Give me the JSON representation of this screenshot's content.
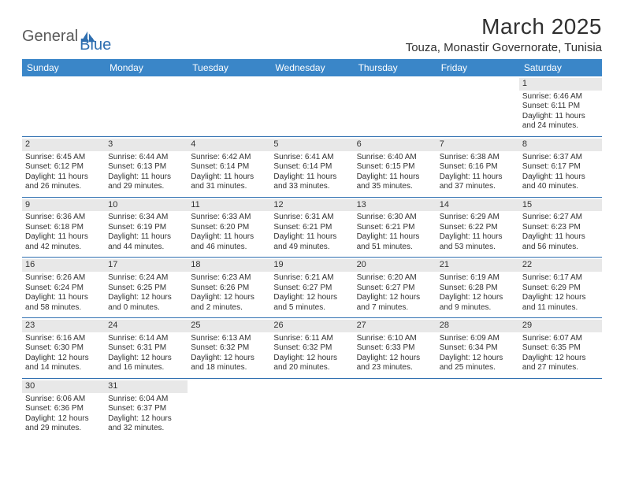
{
  "brand": {
    "part1": "General",
    "part2": "Blue"
  },
  "title": "March 2025",
  "location": "Touza, Monastir Governorate, Tunisia",
  "colors": {
    "header_bg": "#3a86c8",
    "border": "#2f6fb0",
    "daynum_bg": "#e8e8e8",
    "text": "#333333",
    "logo_gray": "#5a5a5a",
    "logo_blue": "#2f6fb0"
  },
  "daynames": [
    "Sunday",
    "Monday",
    "Tuesday",
    "Wednesday",
    "Thursday",
    "Friday",
    "Saturday"
  ],
  "weeks": [
    [
      null,
      null,
      null,
      null,
      null,
      null,
      {
        "n": "1",
        "sr": "6:46 AM",
        "ss": "6:11 PM",
        "dl": "11 hours and 24 minutes."
      }
    ],
    [
      {
        "n": "2",
        "sr": "6:45 AM",
        "ss": "6:12 PM",
        "dl": "11 hours and 26 minutes."
      },
      {
        "n": "3",
        "sr": "6:44 AM",
        "ss": "6:13 PM",
        "dl": "11 hours and 29 minutes."
      },
      {
        "n": "4",
        "sr": "6:42 AM",
        "ss": "6:14 PM",
        "dl": "11 hours and 31 minutes."
      },
      {
        "n": "5",
        "sr": "6:41 AM",
        "ss": "6:14 PM",
        "dl": "11 hours and 33 minutes."
      },
      {
        "n": "6",
        "sr": "6:40 AM",
        "ss": "6:15 PM",
        "dl": "11 hours and 35 minutes."
      },
      {
        "n": "7",
        "sr": "6:38 AM",
        "ss": "6:16 PM",
        "dl": "11 hours and 37 minutes."
      },
      {
        "n": "8",
        "sr": "6:37 AM",
        "ss": "6:17 PM",
        "dl": "11 hours and 40 minutes."
      }
    ],
    [
      {
        "n": "9",
        "sr": "6:36 AM",
        "ss": "6:18 PM",
        "dl": "11 hours and 42 minutes."
      },
      {
        "n": "10",
        "sr": "6:34 AM",
        "ss": "6:19 PM",
        "dl": "11 hours and 44 minutes."
      },
      {
        "n": "11",
        "sr": "6:33 AM",
        "ss": "6:20 PM",
        "dl": "11 hours and 46 minutes."
      },
      {
        "n": "12",
        "sr": "6:31 AM",
        "ss": "6:21 PM",
        "dl": "11 hours and 49 minutes."
      },
      {
        "n": "13",
        "sr": "6:30 AM",
        "ss": "6:21 PM",
        "dl": "11 hours and 51 minutes."
      },
      {
        "n": "14",
        "sr": "6:29 AM",
        "ss": "6:22 PM",
        "dl": "11 hours and 53 minutes."
      },
      {
        "n": "15",
        "sr": "6:27 AM",
        "ss": "6:23 PM",
        "dl": "11 hours and 56 minutes."
      }
    ],
    [
      {
        "n": "16",
        "sr": "6:26 AM",
        "ss": "6:24 PM",
        "dl": "11 hours and 58 minutes."
      },
      {
        "n": "17",
        "sr": "6:24 AM",
        "ss": "6:25 PM",
        "dl": "12 hours and 0 minutes."
      },
      {
        "n": "18",
        "sr": "6:23 AM",
        "ss": "6:26 PM",
        "dl": "12 hours and 2 minutes."
      },
      {
        "n": "19",
        "sr": "6:21 AM",
        "ss": "6:27 PM",
        "dl": "12 hours and 5 minutes."
      },
      {
        "n": "20",
        "sr": "6:20 AM",
        "ss": "6:27 PM",
        "dl": "12 hours and 7 minutes."
      },
      {
        "n": "21",
        "sr": "6:19 AM",
        "ss": "6:28 PM",
        "dl": "12 hours and 9 minutes."
      },
      {
        "n": "22",
        "sr": "6:17 AM",
        "ss": "6:29 PM",
        "dl": "12 hours and 11 minutes."
      }
    ],
    [
      {
        "n": "23",
        "sr": "6:16 AM",
        "ss": "6:30 PM",
        "dl": "12 hours and 14 minutes."
      },
      {
        "n": "24",
        "sr": "6:14 AM",
        "ss": "6:31 PM",
        "dl": "12 hours and 16 minutes."
      },
      {
        "n": "25",
        "sr": "6:13 AM",
        "ss": "6:32 PM",
        "dl": "12 hours and 18 minutes."
      },
      {
        "n": "26",
        "sr": "6:11 AM",
        "ss": "6:32 PM",
        "dl": "12 hours and 20 minutes."
      },
      {
        "n": "27",
        "sr": "6:10 AM",
        "ss": "6:33 PM",
        "dl": "12 hours and 23 minutes."
      },
      {
        "n": "28",
        "sr": "6:09 AM",
        "ss": "6:34 PM",
        "dl": "12 hours and 25 minutes."
      },
      {
        "n": "29",
        "sr": "6:07 AM",
        "ss": "6:35 PM",
        "dl": "12 hours and 27 minutes."
      }
    ],
    [
      {
        "n": "30",
        "sr": "6:06 AM",
        "ss": "6:36 PM",
        "dl": "12 hours and 29 minutes."
      },
      {
        "n": "31",
        "sr": "6:04 AM",
        "ss": "6:37 PM",
        "dl": "12 hours and 32 minutes."
      },
      null,
      null,
      null,
      null,
      null
    ]
  ],
  "labels": {
    "sunrise": "Sunrise:",
    "sunset": "Sunset:",
    "daylight": "Daylight:"
  }
}
